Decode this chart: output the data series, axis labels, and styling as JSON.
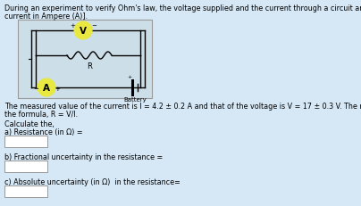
{
  "bg_color": "#d6e8f5",
  "title_text1": "During an experiment to verify Ohm's law, the voltage supplied and the current through a circuit are measured. [Voltage is measured in Volt (V) and",
  "title_text2": "current in Ampere (A)].",
  "body_text1": "The measured value of the current is I = 4.2 ± 0.2 A and that of the voltage is V = 17 ± 0.3 V. The resistance of the circuit (in Ω) can be calculated using",
  "body_text2": "the formula, R = V/I.",
  "calc_label": "Calculate the,",
  "a_label": "a) Resistance (in Ω) =",
  "b_label": "b) Fractional uncertainty in the resistance =",
  "c_label": "c) Absolute uncertainty (in Ω)  in the resistance=",
  "circuit_bg": "#ccdee8",
  "circuit_border": "#999999",
  "voltmeter_color": "#e8e840",
  "ammeter_color": "#e8e840",
  "title_fontsize": 5.8,
  "body_fontsize": 5.8
}
